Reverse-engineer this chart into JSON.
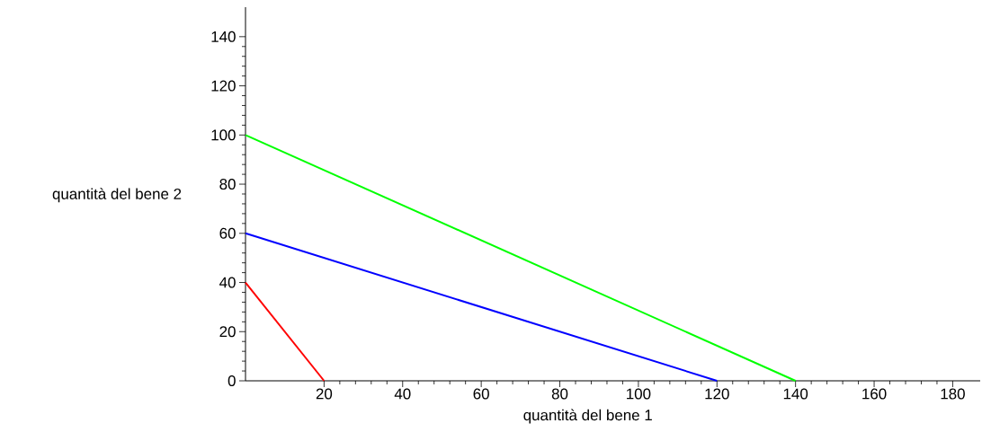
{
  "chart_data": {
    "type": "line",
    "xlabel": "quantità del bene 1",
    "ylabel": "quantità del bene 2",
    "xlim": [
      0,
      187
    ],
    "ylim": [
      0,
      152
    ],
    "xticks": [
      20,
      40,
      60,
      80,
      100,
      120,
      140,
      160,
      180
    ],
    "yticks": [
      0,
      20,
      40,
      60,
      80,
      100,
      120,
      140
    ],
    "marker": "none",
    "line_style": "solid",
    "series": [
      {
        "color": "#ff0000",
        "x": [
          0,
          20
        ],
        "values": [
          40,
          0
        ]
      },
      {
        "color": "#0000ff",
        "x": [
          0,
          120
        ],
        "values": [
          60,
          0
        ]
      },
      {
        "color": "#00ff00",
        "x": [
          0,
          140
        ],
        "values": [
          100,
          0
        ]
      }
    ]
  }
}
